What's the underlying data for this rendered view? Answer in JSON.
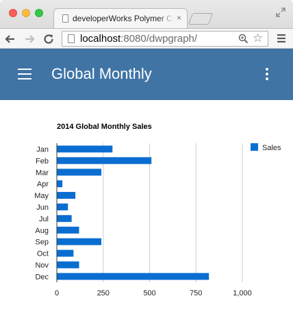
{
  "browser": {
    "tab_title": "developerWorks Polymer Chart Demo",
    "tab_close": "×",
    "url_host": "localhost",
    "url_rest": ":8080/dwpgraph/",
    "star": "☆"
  },
  "app": {
    "title": "Global Monthly"
  },
  "colors": {
    "appbar": "#3f74a5",
    "bar": "#0a6ed1"
  },
  "chart_data": {
    "type": "bar",
    "orientation": "horizontal",
    "title": "2014 Global Monthly Sales",
    "categories": [
      "Jan",
      "Feb",
      "Mar",
      "Apr",
      "May",
      "Jun",
      "Jul",
      "Aug",
      "Sep",
      "Oct",
      "Nov",
      "Dec"
    ],
    "series": [
      {
        "name": "Sales",
        "values": [
          300,
          510,
          240,
          30,
          100,
          60,
          80,
          120,
          240,
          90,
          120,
          820
        ]
      }
    ],
    "xlim": [
      0,
      1000
    ],
    "xticks": [
      "0",
      "250",
      "500",
      "750",
      "1,000"
    ],
    "tick_values": [
      0,
      250,
      500,
      750,
      1000
    ],
    "grid": true,
    "legend_position": "right"
  }
}
